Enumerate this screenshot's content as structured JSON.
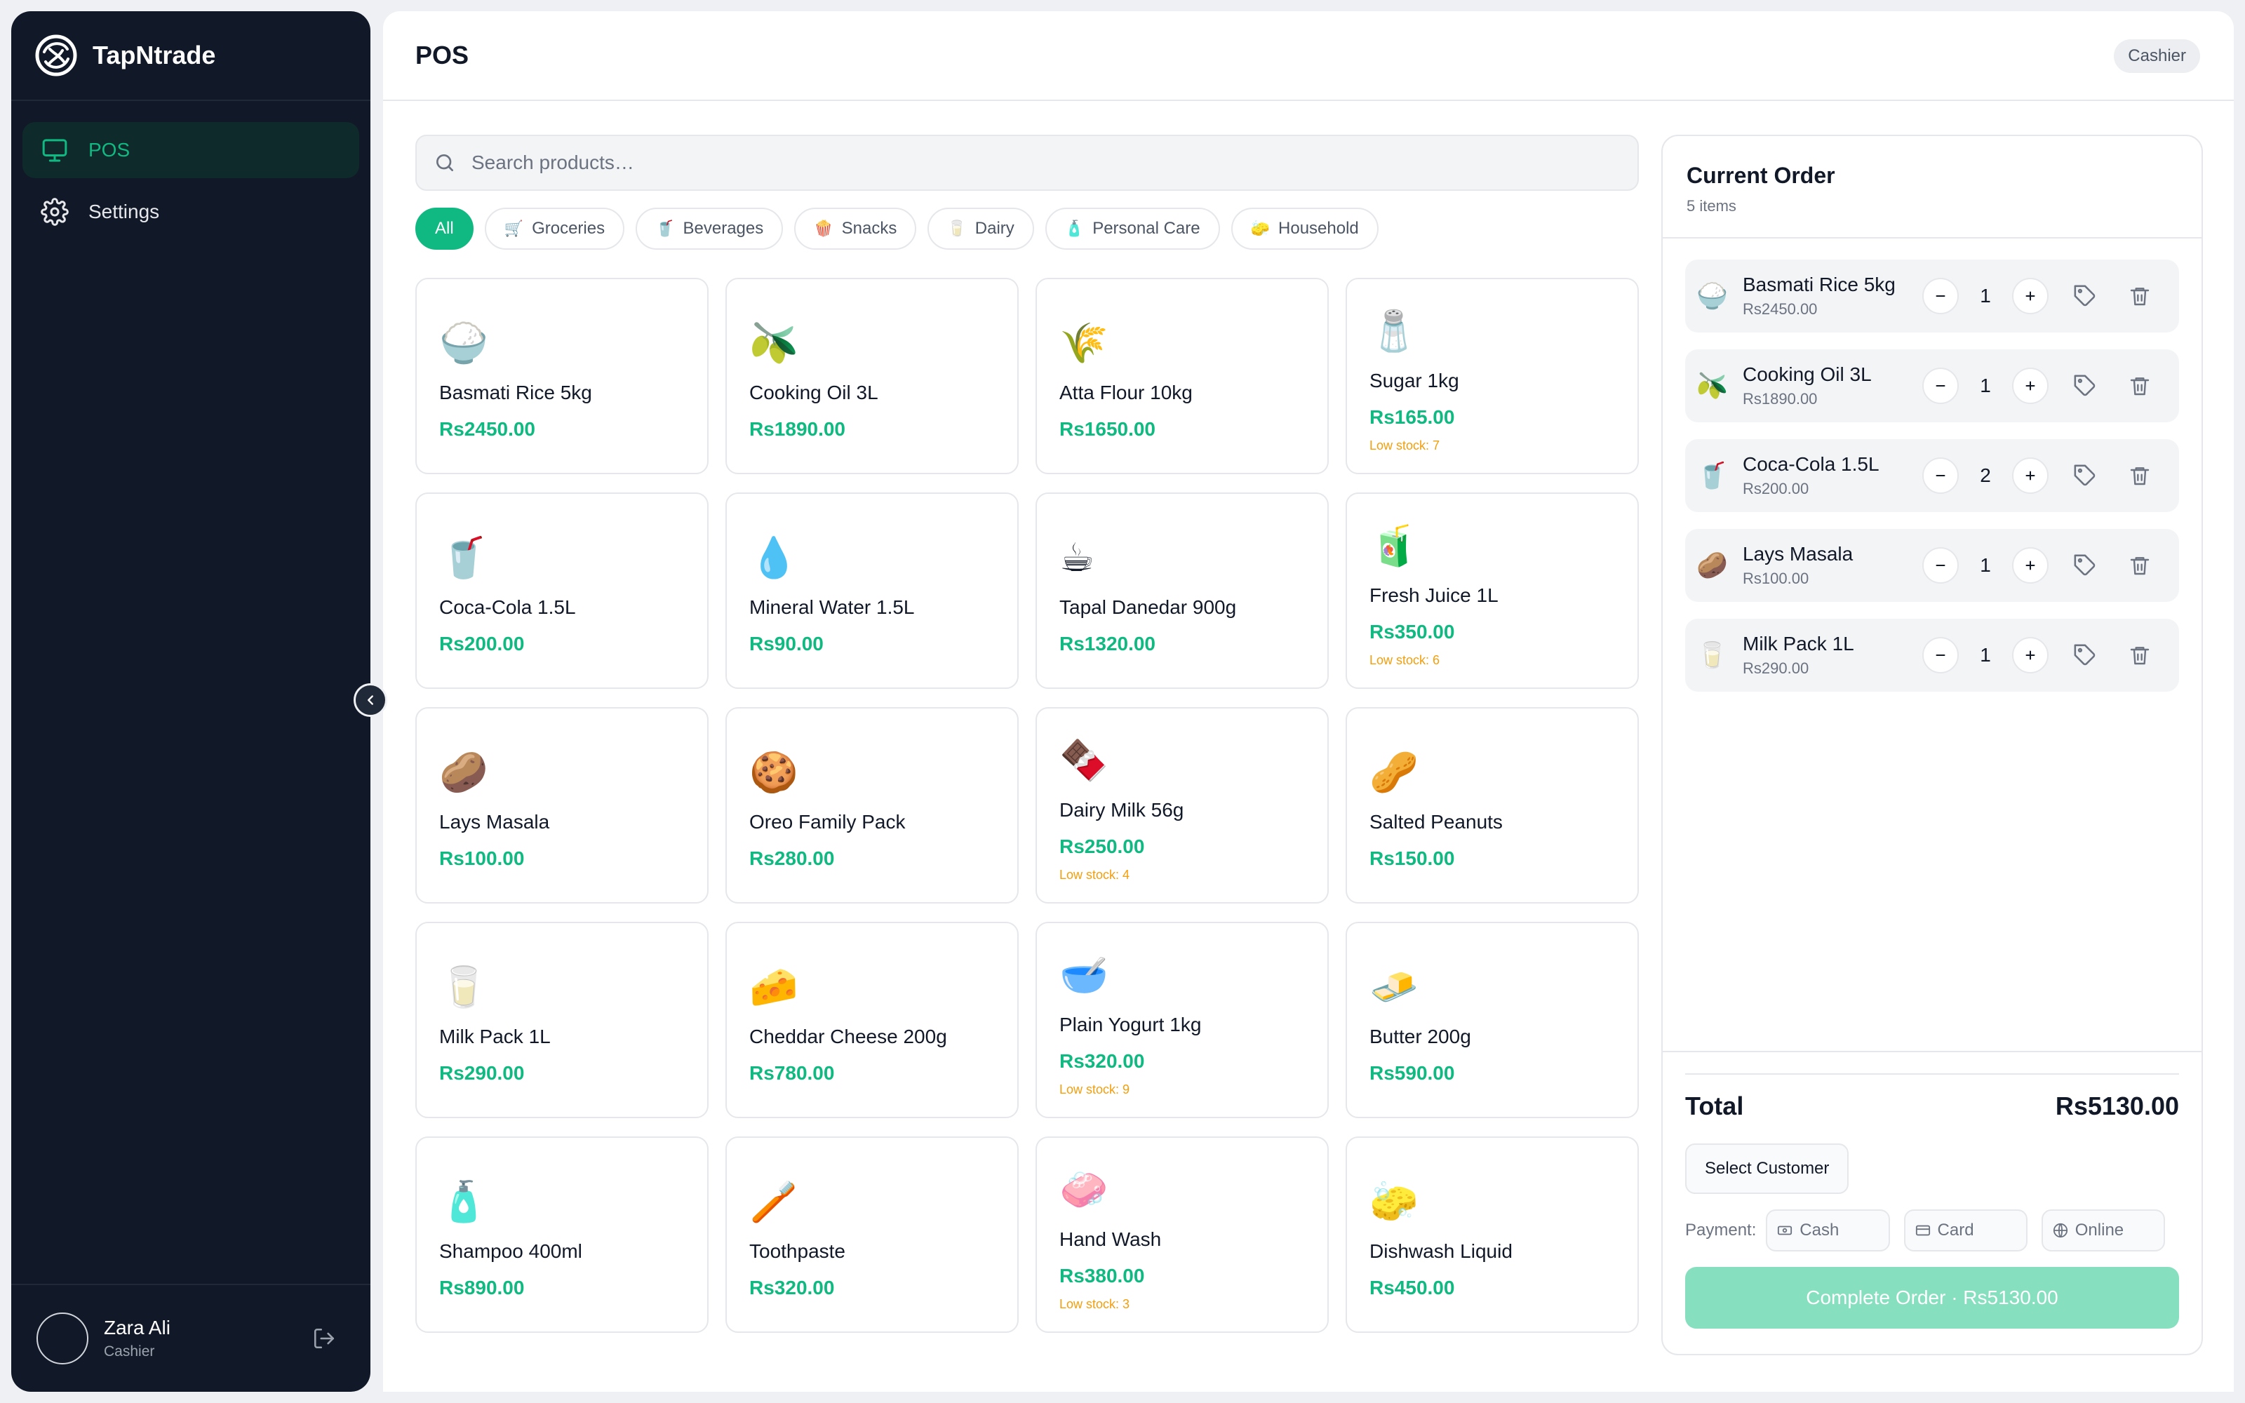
{
  "app": {
    "name": "TapNtrade",
    "logo_icon": "brand-logo-icon"
  },
  "colors": {
    "sidebar_bg": "#111827",
    "accent": "#10b981",
    "low_stock": "#f59e0b",
    "complete_button": "#86dfbf"
  },
  "sidebar": {
    "items": [
      {
        "label": "POS",
        "icon": "monitor-icon",
        "active": true
      },
      {
        "label": "Settings",
        "icon": "gear-icon",
        "active": false
      }
    ],
    "user": {
      "name": "Zara Ali",
      "role": "Cashier"
    }
  },
  "header": {
    "title": "POS",
    "role_badge": "Cashier"
  },
  "search": {
    "placeholder": "Search products…",
    "value": ""
  },
  "categories": [
    {
      "label": "All",
      "icon": "",
      "active": true
    },
    {
      "label": "Groceries",
      "icon": "🛒",
      "active": false
    },
    {
      "label": "Beverages",
      "icon": "🥤",
      "active": false
    },
    {
      "label": "Snacks",
      "icon": "🍿",
      "active": false
    },
    {
      "label": "Dairy",
      "icon": "🥛",
      "active": false
    },
    {
      "label": "Personal Care",
      "icon": "🧴",
      "active": false
    },
    {
      "label": "Household",
      "icon": "🧽",
      "active": false
    }
  ],
  "products": [
    {
      "name": "Basmati Rice 5kg",
      "price": "Rs2450.00",
      "emoji": "🍚",
      "stock": ""
    },
    {
      "name": "Cooking Oil 3L",
      "price": "Rs1890.00",
      "emoji": "🫒",
      "stock": ""
    },
    {
      "name": "Atta Flour 10kg",
      "price": "Rs1650.00",
      "emoji": "🌾",
      "stock": ""
    },
    {
      "name": "Sugar 1kg",
      "price": "Rs165.00",
      "emoji": "🧂",
      "stock": "Low stock: 7"
    },
    {
      "name": "Coca-Cola 1.5L",
      "price": "Rs200.00",
      "emoji": "🥤",
      "stock": ""
    },
    {
      "name": "Mineral Water 1.5L",
      "price": "Rs90.00",
      "emoji": "💧",
      "stock": ""
    },
    {
      "name": "Tapal Danedar 900g",
      "price": "Rs1320.00",
      "emoji": "☕",
      "stock": ""
    },
    {
      "name": "Fresh Juice 1L",
      "price": "Rs350.00",
      "emoji": "🧃",
      "stock": "Low stock: 6"
    },
    {
      "name": "Lays Masala",
      "price": "Rs100.00",
      "emoji": "🥔",
      "stock": ""
    },
    {
      "name": "Oreo Family Pack",
      "price": "Rs280.00",
      "emoji": "🍪",
      "stock": ""
    },
    {
      "name": "Dairy Milk 56g",
      "price": "Rs250.00",
      "emoji": "🍫",
      "stock": "Low stock: 4"
    },
    {
      "name": "Salted Peanuts",
      "price": "Rs150.00",
      "emoji": "🥜",
      "stock": ""
    },
    {
      "name": "Milk Pack 1L",
      "price": "Rs290.00",
      "emoji": "🥛",
      "stock": ""
    },
    {
      "name": "Cheddar Cheese 200g",
      "price": "Rs780.00",
      "emoji": "🧀",
      "stock": ""
    },
    {
      "name": "Plain Yogurt 1kg",
      "price": "Rs320.00",
      "emoji": "🥣",
      "stock": "Low stock: 9"
    },
    {
      "name": "Butter 200g",
      "price": "Rs590.00",
      "emoji": "🧈",
      "stock": ""
    },
    {
      "name": "Shampoo 400ml",
      "price": "Rs890.00",
      "emoji": "🧴",
      "stock": ""
    },
    {
      "name": "Toothpaste",
      "price": "Rs320.00",
      "emoji": "🪥",
      "stock": ""
    },
    {
      "name": "Hand Wash",
      "price": "Rs380.00",
      "emoji": "🧼",
      "stock": "Low stock: 3"
    },
    {
      "name": "Dishwash Liquid",
      "price": "Rs450.00",
      "emoji": "🧽",
      "stock": ""
    }
  ],
  "order": {
    "title": "Current Order",
    "count": "5 items",
    "items": [
      {
        "name": "Basmati Rice 5kg",
        "price": "Rs2450.00",
        "emoji": "🍚",
        "qty": "1"
      },
      {
        "name": "Cooking Oil 3L",
        "price": "Rs1890.00",
        "emoji": "🫒",
        "qty": "1"
      },
      {
        "name": "Coca-Cola 1.5L",
        "price": "Rs200.00",
        "emoji": "🥤",
        "qty": "2"
      },
      {
        "name": "Lays Masala",
        "price": "Rs100.00",
        "emoji": "🥔",
        "qty": "1"
      },
      {
        "name": "Milk Pack 1L",
        "price": "Rs290.00",
        "emoji": "🥛",
        "qty": "1"
      }
    ],
    "qty_minus": "−",
    "qty_plus": "+",
    "total_label": "Total",
    "total_value": "Rs5130.00",
    "select_customer": "Select Customer",
    "payment_label": "Payment:",
    "payment_methods": [
      {
        "label": "Cash",
        "icon": "cash-icon"
      },
      {
        "label": "Card",
        "icon": "card-icon"
      },
      {
        "label": "Online",
        "icon": "globe-icon"
      }
    ],
    "complete_label": "Complete Order · Rs5130.00"
  }
}
